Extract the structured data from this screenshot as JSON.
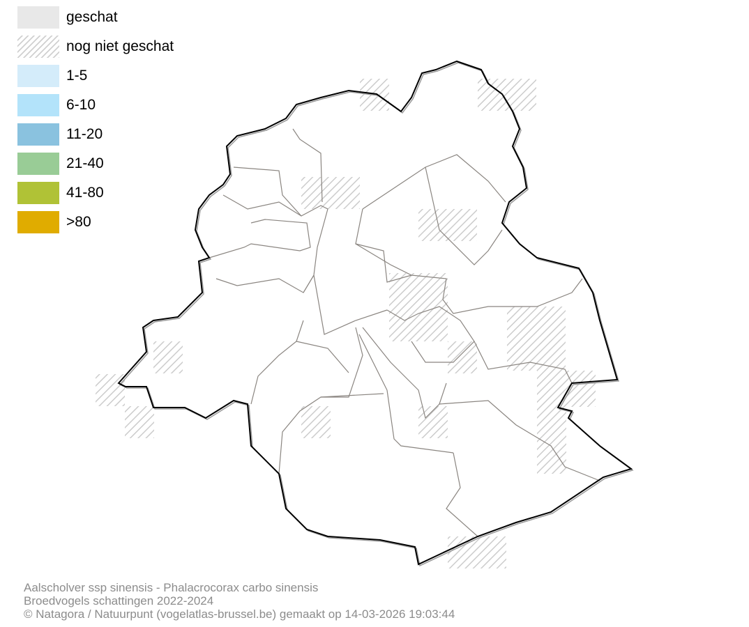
{
  "legend": {
    "items": [
      {
        "label": "geschat",
        "color": "#e8e8e8",
        "pattern": "solid"
      },
      {
        "label": "nog niet geschat",
        "color": "#d0d0d0",
        "pattern": "hatched"
      },
      {
        "label": "1-5",
        "color": "#d4ecfa",
        "pattern": "solid"
      },
      {
        "label": "6-10",
        "color": "#b3e3fa",
        "pattern": "solid"
      },
      {
        "label": "11-20",
        "color": "#8ac2df",
        "pattern": "solid"
      },
      {
        "label": "21-40",
        "color": "#99cc96",
        "pattern": "solid"
      },
      {
        "label": "41-80",
        "color": "#b0c236",
        "pattern": "solid"
      },
      {
        "label": ">80",
        "color": "#e0ac00",
        "pattern": "solid"
      }
    ]
  },
  "map": {
    "region_outline_color": "#000000",
    "municipality_border_color": "#8a8580",
    "hatch_color": "#cccccc"
  },
  "footer": {
    "species": "Aalscholver ssp sinensis - Phalacrocorax carbo sinensis",
    "dataset": "Broedvogels schattingen 2022-2024",
    "credit": "© Natagora / Natuurpunt (vogelatlas-brussel.be) gemaakt op 14-03-2026 19:03:44"
  }
}
